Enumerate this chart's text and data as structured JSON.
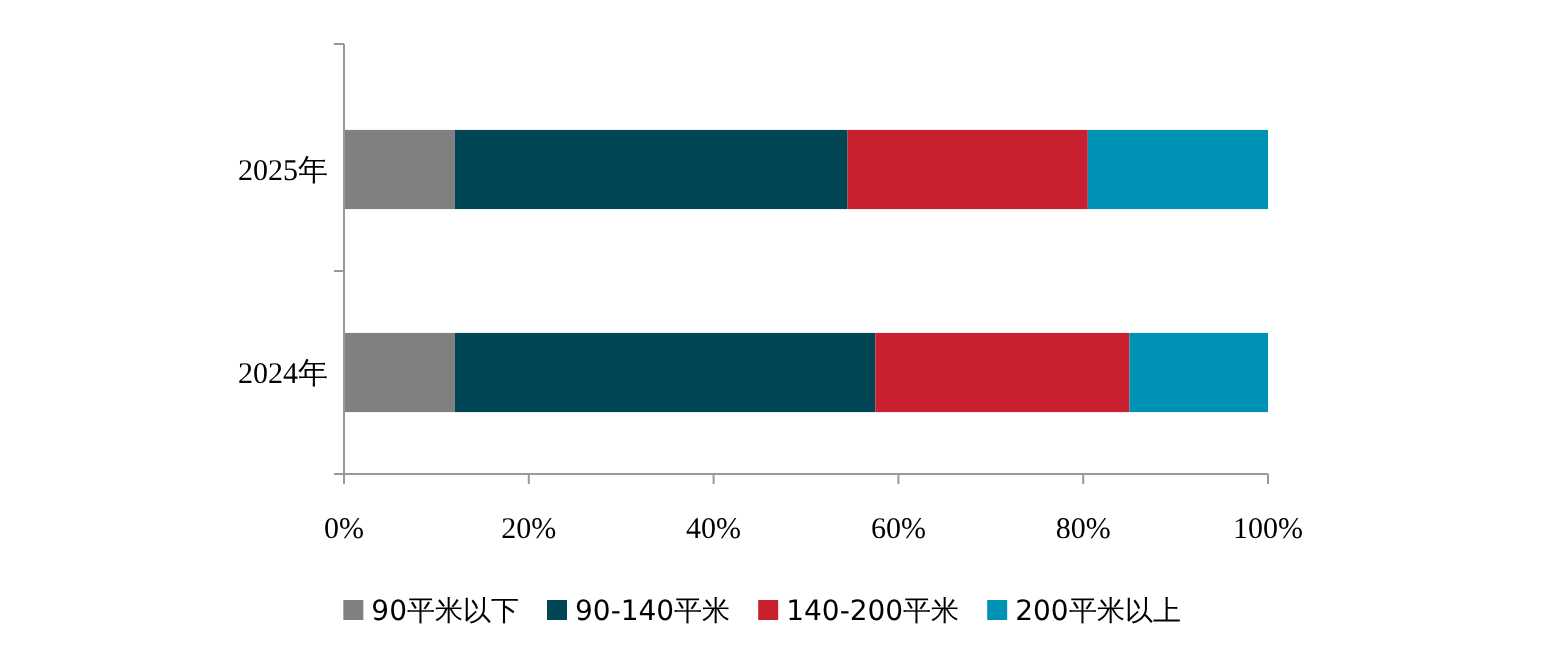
{
  "chart_data": {
    "type": "bar",
    "orientation": "horizontal",
    "stacked": true,
    "categories": [
      "2025年",
      "2024年"
    ],
    "series": [
      {
        "name": "90平米以下",
        "color": "#808080",
        "values": [
          12,
          12
        ]
      },
      {
        "name": "90-140平米",
        "color": "#004655",
        "values": [
          42.5,
          45.5
        ]
      },
      {
        "name": "140-200平米",
        "color": "#c8202f",
        "values": [
          26,
          27.5
        ]
      },
      {
        "name": "200平米以上",
        "color": "#0092b5",
        "values": [
          19.5,
          15
        ]
      }
    ],
    "xlim": [
      0,
      100
    ],
    "xticks": [
      {
        "value": 0,
        "label": "0%"
      },
      {
        "value": 20,
        "label": "20%"
      },
      {
        "value": 40,
        "label": "40%"
      },
      {
        "value": 60,
        "label": "60%"
      },
      {
        "value": 80,
        "label": "80%"
      },
      {
        "value": 100,
        "label": "100%"
      }
    ],
    "legend": "bottom"
  }
}
